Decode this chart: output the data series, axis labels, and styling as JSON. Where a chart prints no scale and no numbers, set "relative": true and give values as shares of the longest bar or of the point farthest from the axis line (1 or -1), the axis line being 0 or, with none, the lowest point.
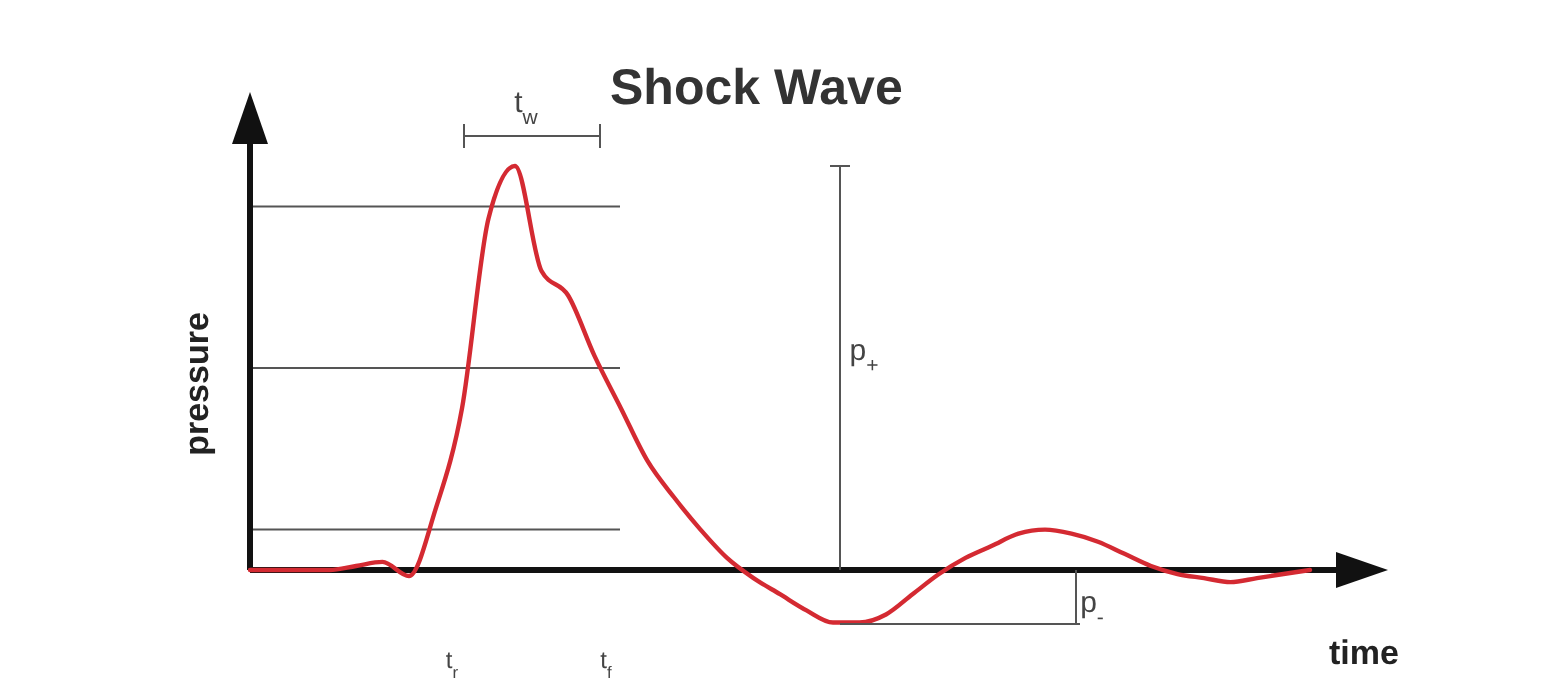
{
  "chart_data": {
    "type": "line",
    "title": "Shock Wave",
    "xlabel": "time",
    "ylabel": "pressure",
    "relative": true,
    "categories": [
      null,
      null,
      null,
      null,
      null,
      null,
      null,
      null,
      null,
      null,
      null,
      null,
      null,
      null,
      null,
      null,
      null,
      null,
      null,
      null,
      null,
      null,
      null,
      null,
      null,
      null,
      null,
      null,
      null,
      null,
      null,
      null,
      null,
      null,
      null,
      null,
      null,
      null,
      null,
      null,
      null
    ],
    "series": [
      {
        "color": "#d42a32",
        "values": [
          0,
          0,
          0,
          0,
          0.01,
          0.02,
          -0.015,
          0.15,
          0.4,
          0.87,
          1,
          0.74,
          0.68,
          0.53,
          0.4,
          0.27,
          0.18,
          0.1,
          0.03,
          -0.02,
          -0.06,
          -0.1,
          -0.13,
          -0.13,
          -0.11,
          -0.06,
          -0.01,
          0.03,
          0.06,
          0.09,
          0.1,
          0.09,
          0.07,
          0.04,
          0.01,
          -0.01,
          -0.02,
          -0.03,
          -0.02,
          -0.01,
          0
        ]
      }
    ],
    "ref_lines": [
      {
        "axis": "y",
        "value": 0.9,
        "color": "#555555"
      },
      {
        "axis": "y",
        "value": 0.5,
        "color": "#555555"
      },
      {
        "axis": "y",
        "value": 0.1,
        "color": "#555555"
      }
    ],
    "annotations": [
      "t$_{w}$",
      "p$_{+}$",
      "p$_{-}$",
      "t$_{r}$",
      "t$_{f}$"
    ],
    "marker": "none",
    "line_style": "solid",
    "grid": false
  }
}
